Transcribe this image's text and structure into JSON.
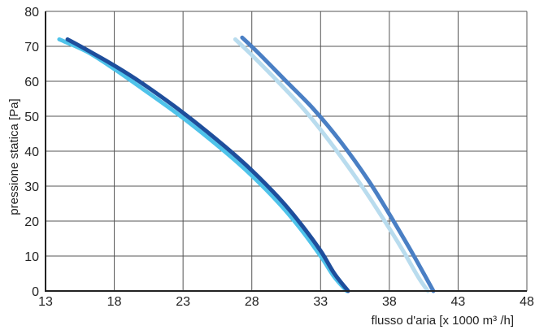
{
  "chart_data": {
    "type": "line",
    "xlabel": "flusso d'aria [x 1000 m³ /h]",
    "ylabel": "pressione statica [Pa]",
    "xlim": [
      13,
      48
    ],
    "ylim": [
      0,
      80
    ],
    "x_ticks": [
      "13",
      "18",
      "23",
      "28",
      "33",
      "38",
      "43",
      "48"
    ],
    "y_ticks": [
      "0",
      "10",
      "20",
      "30",
      "40",
      "50",
      "60",
      "70",
      "80"
    ],
    "grid": true,
    "series": [
      {
        "color": "#4fc3ea",
        "points": [
          [
            14.0,
            72
          ],
          [
            16,
            68.5
          ],
          [
            18,
            63.5
          ],
          [
            20,
            58
          ],
          [
            23,
            49.5
          ],
          [
            26,
            40
          ],
          [
            28,
            33
          ],
          [
            30,
            25
          ],
          [
            31.5,
            18
          ],
          [
            33,
            10
          ],
          [
            34,
            4
          ],
          [
            34.9,
            0
          ]
        ]
      },
      {
        "color": "#1e4e9c",
        "points": [
          [
            14.6,
            72
          ],
          [
            16,
            69
          ],
          [
            18,
            64.5
          ],
          [
            20,
            59.5
          ],
          [
            23,
            51
          ],
          [
            26,
            41.5
          ],
          [
            28,
            34.5
          ],
          [
            30,
            26.5
          ],
          [
            31.5,
            19.5
          ],
          [
            33,
            11.5
          ],
          [
            34,
            5
          ],
          [
            35.0,
            0
          ]
        ]
      },
      {
        "color": "#b9dcee",
        "points": [
          [
            26.8,
            72
          ],
          [
            28,
            67.5
          ],
          [
            30,
            59.5
          ],
          [
            32,
            51
          ],
          [
            34,
            41
          ],
          [
            36,
            30
          ],
          [
            37.5,
            21
          ],
          [
            39,
            11.5
          ],
          [
            40.1,
            4
          ],
          [
            40.8,
            0
          ]
        ]
      },
      {
        "color": "#4a7fc4",
        "points": [
          [
            27.3,
            72.5
          ],
          [
            28.5,
            68
          ],
          [
            30.5,
            60
          ],
          [
            32.5,
            52
          ],
          [
            34.5,
            42.5
          ],
          [
            36.5,
            31.5
          ],
          [
            38,
            22
          ],
          [
            39.5,
            12
          ],
          [
            40.5,
            5
          ],
          [
            41.2,
            0
          ]
        ]
      }
    ]
  }
}
